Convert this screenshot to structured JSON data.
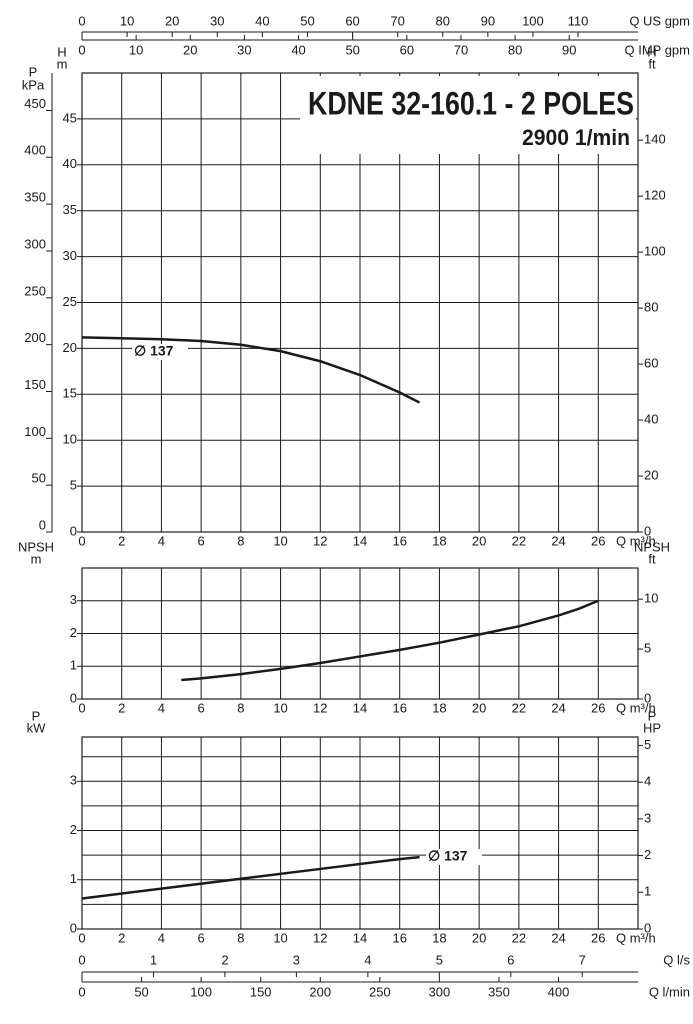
{
  "chart_data": [
    {
      "type": "line",
      "title": "KDNE 32-160.1 - 2 POLES",
      "subtitle": "2900 1/min",
      "x_axes_top": [
        {
          "label": "Q US gpm",
          "xlim": [
            0,
            123.3
          ],
          "xticks": [
            0,
            10,
            20,
            30,
            40,
            50,
            60,
            70,
            80,
            90,
            100,
            110
          ]
        },
        {
          "label": "Q IMP gpm",
          "xlim": [
            0,
            102.7
          ],
          "xticks": [
            0,
            10,
            20,
            30,
            40,
            50,
            60,
            70,
            80,
            90
          ]
        }
      ],
      "xlabel": "Q m³/h",
      "xlim": [
        0,
        28
      ],
      "xticks": [
        0,
        2,
        4,
        6,
        8,
        10,
        12,
        14,
        16,
        18,
        20,
        22,
        24,
        26
      ],
      "ylabel": [
        "H",
        "m"
      ],
      "ylim": [
        0,
        50
      ],
      "yticks": [
        0,
        5,
        10,
        15,
        20,
        25,
        30,
        35,
        40,
        45
      ],
      "y3label": [
        "P",
        "kPa"
      ],
      "y3lim": [
        0,
        490
      ],
      "y3ticks": [
        0,
        50,
        100,
        150,
        200,
        250,
        300,
        350,
        400,
        450
      ],
      "y2label": [
        "H",
        "ft"
      ],
      "y2lim": [
        0,
        164
      ],
      "y2ticks": [
        0,
        20,
        40,
        60,
        80,
        100,
        120,
        140
      ],
      "grid": true,
      "series": [
        {
          "name": "∅ 137",
          "color": "#1a1a1a",
          "x": [
            0,
            2,
            4,
            6,
            8,
            10,
            12,
            14,
            16,
            17
          ],
          "values": [
            21.2,
            21.1,
            21.0,
            20.8,
            20.4,
            19.7,
            18.6,
            17.1,
            15.2,
            14.1
          ]
        }
      ]
    },
    {
      "type": "line",
      "xlabel": "Q m³/h",
      "xlim": [
        0,
        28
      ],
      "xticks": [
        0,
        2,
        4,
        6,
        8,
        10,
        12,
        14,
        16,
        18,
        20,
        22,
        24,
        26
      ],
      "ylabel": [
        "NPSH",
        "m"
      ],
      "ylim": [
        0,
        4
      ],
      "yticks": [
        0,
        1,
        2,
        3
      ],
      "y2label": [
        "NPSH",
        "ft"
      ],
      "y2lim": [
        0,
        13.12
      ],
      "y2ticks": [
        0,
        5,
        10
      ],
      "grid": true,
      "series": [
        {
          "color": "#1a1a1a",
          "x": [
            5,
            6,
            8,
            10,
            12,
            14,
            16,
            18,
            20,
            22,
            24,
            25,
            26
          ],
          "values": [
            0.58,
            0.63,
            0.76,
            0.92,
            1.1,
            1.3,
            1.5,
            1.72,
            1.97,
            2.22,
            2.55,
            2.75,
            3.0
          ]
        }
      ]
    },
    {
      "type": "line",
      "xlabel": "Q m³/h",
      "xlim": [
        0,
        28
      ],
      "xticks": [
        0,
        2,
        4,
        6,
        8,
        10,
        12,
        14,
        16,
        18,
        20,
        22,
        24,
        26
      ],
      "ylabel": [
        "P",
        "kW"
      ],
      "ylim": [
        0,
        3.9
      ],
      "yticks": [
        0,
        1,
        2,
        3
      ],
      "minor_yticks": [
        0.5,
        1.5,
        2.5,
        3.5
      ],
      "y2label": [
        "P",
        "HP"
      ],
      "y2lim": [
        0,
        5.23
      ],
      "y2ticks": [
        0,
        1,
        2,
        3,
        4,
        5
      ],
      "grid": true,
      "series": [
        {
          "name": "∅ 137",
          "color": "#1a1a1a",
          "x": [
            0,
            4,
            8,
            12,
            16,
            17
          ],
          "values": [
            0.62,
            0.82,
            1.02,
            1.22,
            1.42,
            1.46
          ]
        }
      ],
      "x_axes_bottom": [
        {
          "label": "Q l/s",
          "xlim": [
            0,
            7.78
          ],
          "xticks": [
            0,
            1,
            2,
            3,
            4,
            5,
            6,
            7
          ]
        },
        {
          "label": "Q l/min",
          "xlim": [
            0,
            466.7
          ],
          "xticks": [
            0,
            50,
            100,
            150,
            200,
            250,
            300,
            350,
            400
          ]
        }
      ]
    }
  ]
}
